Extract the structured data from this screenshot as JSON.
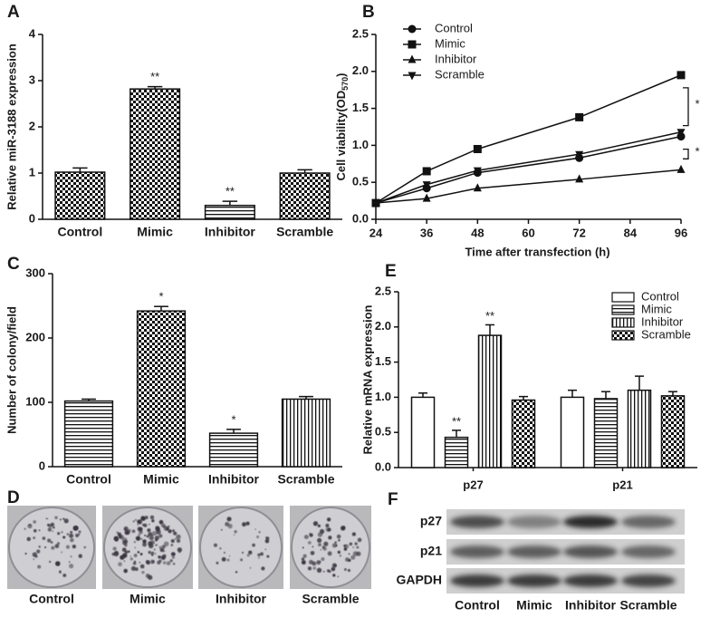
{
  "chart_data": [
    {
      "panel": "A",
      "type": "bar",
      "ylabel": "Relative miR-3188 expression",
      "categories": [
        "Control",
        "Mimic",
        "Inhibitor",
        "Scramble"
      ],
      "values": [
        1.02,
        2.82,
        0.3,
        1.0
      ],
      "errors": [
        0.09,
        0.05,
        0.09,
        0.07
      ],
      "annotations": [
        null,
        "**",
        "**",
        null
      ],
      "patterns": [
        "checker",
        "checker",
        "hlines",
        "checker"
      ],
      "color": "#111111",
      "ylim": [
        0,
        4
      ],
      "yticks": [
        0,
        1,
        2,
        3,
        4
      ]
    },
    {
      "panel": "B",
      "type": "line",
      "xlabel": "Time after transfection (h)",
      "ylabel": {
        "text": "Cell  viability(OD",
        "subscript": "570",
        "end": ")"
      },
      "x": [
        24,
        36,
        48,
        72,
        96
      ],
      "series": [
        {
          "name": "Control",
          "marker": "circle",
          "color": "#111111",
          "values": [
            0.22,
            0.42,
            0.63,
            0.83,
            1.12
          ]
        },
        {
          "name": "Mimic",
          "marker": "square",
          "color": "#111111",
          "values": [
            0.22,
            0.65,
            0.95,
            1.38,
            1.95
          ]
        },
        {
          "name": "Inhibitor",
          "marker": "triangle",
          "color": "#111111",
          "values": [
            0.22,
            0.28,
            0.42,
            0.54,
            0.67
          ]
        },
        {
          "name": "Scramble",
          "marker": "triangle-down",
          "color": "#111111",
          "values": [
            0.22,
            0.47,
            0.66,
            0.88,
            1.18
          ]
        }
      ],
      "xlim": [
        24,
        96
      ],
      "xticks": [
        24,
        36,
        48,
        60,
        72,
        84,
        96
      ],
      "ylim": [
        0,
        2.5
      ],
      "yticks": [
        {
          "value": 0,
          "label": "0.0"
        },
        0.5,
        {
          "value": 1,
          "label": "1.0"
        },
        1.5,
        {
          "value": 2,
          "label": "2.0"
        },
        2.5
      ],
      "legend": "upper left",
      "annotations": [
        "*",
        "*"
      ]
    },
    {
      "panel": "C",
      "type": "bar",
      "ylabel": "Number of colony/field",
      "categories": [
        "Control",
        "Mimic",
        "Inhibitor",
        "Scramble"
      ],
      "values": [
        102,
        242,
        52,
        105
      ],
      "errors": [
        3,
        7,
        6,
        4
      ],
      "annotations": [
        null,
        "*",
        "*",
        null
      ],
      "patterns": [
        "hlines",
        "checker",
        "hlines",
        "vlines"
      ],
      "color": "#111111",
      "ylim": [
        0,
        300
      ],
      "yticks": [
        0,
        100,
        200,
        300
      ]
    },
    {
      "panel": "E",
      "type": "bar",
      "ylabel": "Relative mRNA expression",
      "categories": [
        "p27",
        "p21"
      ],
      "series": [
        {
          "name": "Control",
          "pattern": "blank",
          "values": [
            1.0,
            1.0
          ],
          "errors": [
            0.06,
            0.1
          ]
        },
        {
          "name": "Mimic",
          "pattern": "hlines",
          "values": [
            0.43,
            0.98
          ],
          "errors": [
            0.1,
            0.1
          ],
          "annotations": [
            "**",
            null
          ]
        },
        {
          "name": "Inhibitor",
          "pattern": "vlines",
          "values": [
            1.88,
            1.1
          ],
          "errors": [
            0.15,
            0.2
          ],
          "annotations": [
            "**",
            null
          ]
        },
        {
          "name": "Scramble",
          "pattern": "checker",
          "values": [
            0.96,
            1.02
          ],
          "errors": [
            0.05,
            0.06
          ]
        }
      ],
      "color": "#111111",
      "ylim": [
        0,
        2.5
      ],
      "yticks": [
        {
          "value": 0,
          "label": "0.0"
        },
        0.5,
        {
          "value": 1,
          "label": "1.0"
        },
        1.5,
        {
          "value": 2,
          "label": "2.0"
        },
        2.5
      ],
      "legend": "upper right"
    }
  ],
  "panel_d": {
    "label": "D",
    "columns": [
      "Control",
      "Mimic",
      "Inhibitor",
      "Scramble"
    ]
  },
  "panel_f": {
    "label": "F",
    "rows": [
      "p27",
      "p21",
      "GAPDH"
    ],
    "columns": [
      "Control",
      "Mimic",
      "Inhibitor",
      "Scramble"
    ]
  }
}
